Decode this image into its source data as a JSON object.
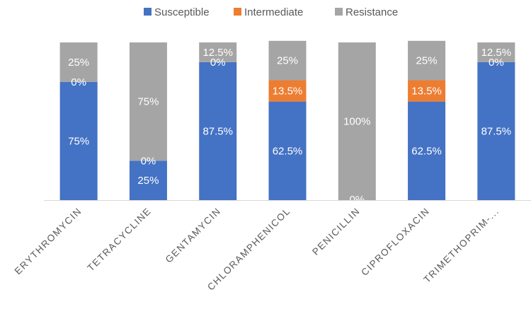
{
  "chart_data": {
    "type": "bar",
    "stacked": true,
    "categories": [
      "ERYTHROMYCIN",
      "TETRACYCLINE",
      "GENTAMYCIN",
      "CHLORAMPHENICOL",
      "PENICILLIN",
      "CIPROFLOXACIN",
      "TRIMETHOPRIM-..."
    ],
    "series": [
      {
        "name": "Susceptible",
        "color": "#4472c4",
        "values": [
          75,
          25,
          87.5,
          62.5,
          0,
          62.5,
          87.5
        ],
        "labels": [
          "75%",
          "25%",
          "87.5%",
          "62.5%",
          "0%",
          "62.5%",
          "87.5%"
        ]
      },
      {
        "name": "Intermediate",
        "color": "#ed7d31",
        "values": [
          0,
          0,
          0,
          13.5,
          0,
          13.5,
          0
        ],
        "labels": [
          "0%",
          "0%",
          "0%",
          "13.5%",
          "",
          "13.5%",
          "0%"
        ]
      },
      {
        "name": "Resistance",
        "color": "#a5a5a5",
        "values": [
          25,
          75,
          12.5,
          25,
          100,
          25,
          12.5
        ],
        "labels": [
          "25%",
          "75%",
          "12.5%",
          "25%",
          "100%",
          "25%",
          "12.5%"
        ]
      }
    ],
    "ylim": [
      0,
      100
    ],
    "legend_position": "top",
    "grid": false
  }
}
